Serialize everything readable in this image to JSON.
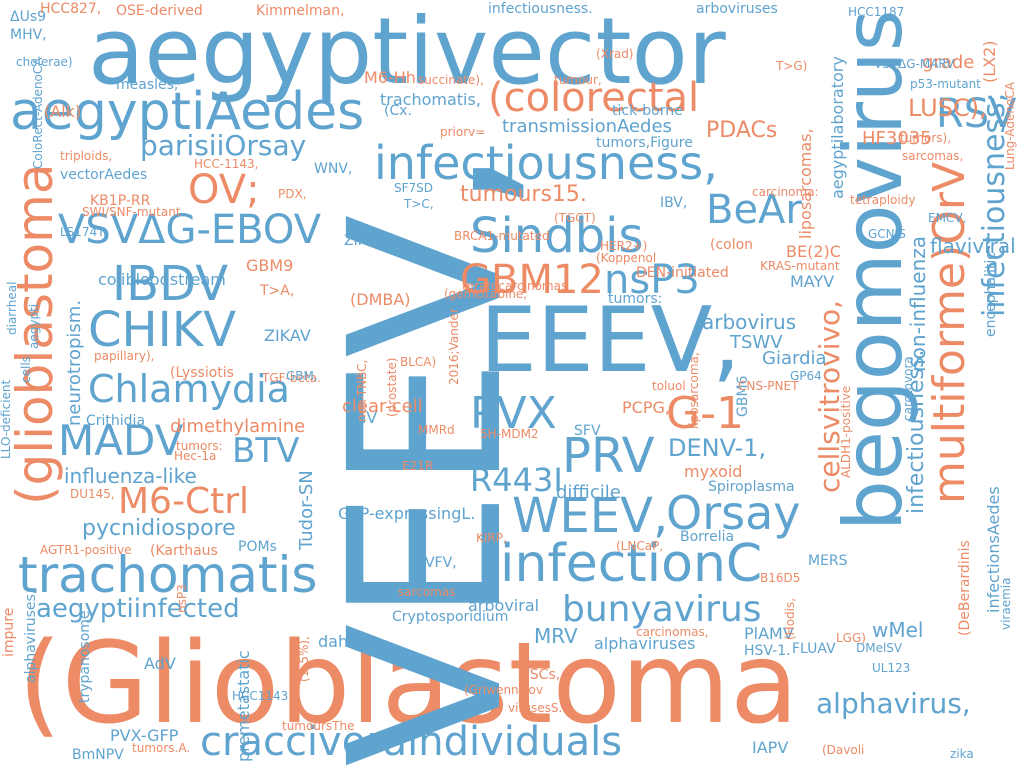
{
  "colors": {
    "blue": "#5fa3cf",
    "orange": "#ec8b66",
    "background": "#ffffff"
  },
  "words": [
    "(Glioblastoma",
    "VEEV,",
    "aegyptivector",
    "begomovirus",
    "EEEV,",
    "aegyptiAedes",
    "infectiousness,",
    "(glioblastoma",
    "trachomatis",
    "craccivoraindividuals",
    "infectionC",
    "multiforme)OrV",
    "Sindbis",
    "VSVΔG-EBOV",
    "CHIKV",
    "IBDV",
    "Chlamydia",
    "MADV",
    "WEEV,",
    "Orsay",
    "(colorectal",
    "PVX",
    "PRV",
    "GBM12",
    "nsP3",
    "G-1",
    "BeAr",
    "RSV",
    "OV;",
    "M6-Ctrl",
    "bunyavirus",
    "infectiousness;",
    "parisiiOrsay",
    "BTV",
    "cellsvitrovivo,",
    "aegyptiinfected",
    "alphavirus,",
    "DENV-1,",
    "R443I",
    "infectiousness.",
    "arboviruses",
    "LUSC),",
    "flaviviral",
    "grade",
    "PDACs",
    "HF3035",
    "tumours15.",
    "(LX2)",
    "aegyptilaboratory",
    "liposarcomas,",
    "transmissionAedes",
    "non-influenza",
    "colibloodstream",
    "pycnidiospore",
    "influenza-like",
    "dimethylamine",
    "MRV",
    "wMel",
    "arboviral",
    "arbovirus",
    "TSWV",
    "Giardia",
    "GFP-expressingL.",
    "difficile",
    "Spiroplasma",
    "neurotropism.",
    "clear-cell",
    "GBM9",
    "ZIKAV",
    "(DMBA)",
    "BE(2)C",
    "MAYV",
    "PCPG,",
    "myxoid",
    "alphaviruses",
    "EhV",
    "M6-Hh",
    "trachomatis,",
    "measles,",
    "(Alk)",
    "ΔUs9",
    "MHV,",
    "HCC827,",
    "OSE-derived",
    "Kimmelman,",
    "HCC1187",
    "cholerae)",
    "tick-borne",
    "VSVΔG-MARV",
    "p53-mutant",
    "Lung-AdenoCA",
    "encephalitic",
    "infectionsAedes",
    "(DeBerardinis",
    "Tudor-SN",
    "vectorAedes",
    "KB1P-RR",
    "WNV,",
    "ZIKV)",
    "sarcomas",
    "teratocarcinomas",
    "HER2+)",
    "(Koppenol",
    "DEN-initiated",
    "tumors:",
    "IBV,",
    "(colon",
    "carcinoma:",
    "tetraploidy",
    "EMCV,",
    "GCNIS",
    "KRAS-mutant",
    "(gemcitabine,",
    "(TGCT)",
    "BRCA1-mutated",
    "GBM6",
    "GP64",
    "CNS-PNET",
    "carotovora",
    "ALDH1-positive",
    "T>A,",
    "T>C,",
    "PDX,",
    "SF7SD",
    "HCC-1143,",
    "SWI/SNF-mutant",
    "triploids,",
    "(Xrad)",
    "succinate),",
    "tumour,",
    "T>G)",
    "tumors),",
    "sarcomas,",
    "LS174T,",
    "ColoRect-AdenoCA",
    "cells",
    "aegypti",
    "diarrheal",
    "papillary),",
    "(Lyssiotis",
    "TGF-beta.",
    "GBM,",
    "non-TNBC,",
    "(prostate)",
    "BLCA)",
    "2016;Vander",
    "liposarcoma,",
    "toluol",
    "LGG)",
    "MMRd",
    "LLO-deficient",
    "Crithidia",
    "tumors:",
    "Hec-1a",
    "DU145,",
    "5H-MDM2",
    "E21R",
    "SFV",
    "infectiousness.",
    "AGTR1-positive",
    "(Karthaus",
    "POMs",
    "KIRP,",
    "(LNCaP,",
    "Borrelia",
    "B16D5",
    "RVFV,",
    "Cryptosporidium",
    "MERS",
    "PlAMV",
    "viraemia",
    "impure",
    "alphaviruses,",
    "trypanosome",
    "nsP3",
    "AdV",
    "premetastatic",
    "dahliae",
    "HCC1143",
    "(1–5%),",
    "tumoursThe",
    "CSCs,",
    "(Griwennikov",
    "carcinomas,",
    "virusesS.",
    "HSV-1.",
    "FLUAV",
    "DMelSV",
    "(Hodis,",
    "UL123",
    "PVX-GFP",
    "BmNPV",
    "tumors.A.",
    "IAPV",
    "(Davoli",
    "zika",
    "priorv=",
    "(Cx.",
    "tumors,Figure"
  ]
}
